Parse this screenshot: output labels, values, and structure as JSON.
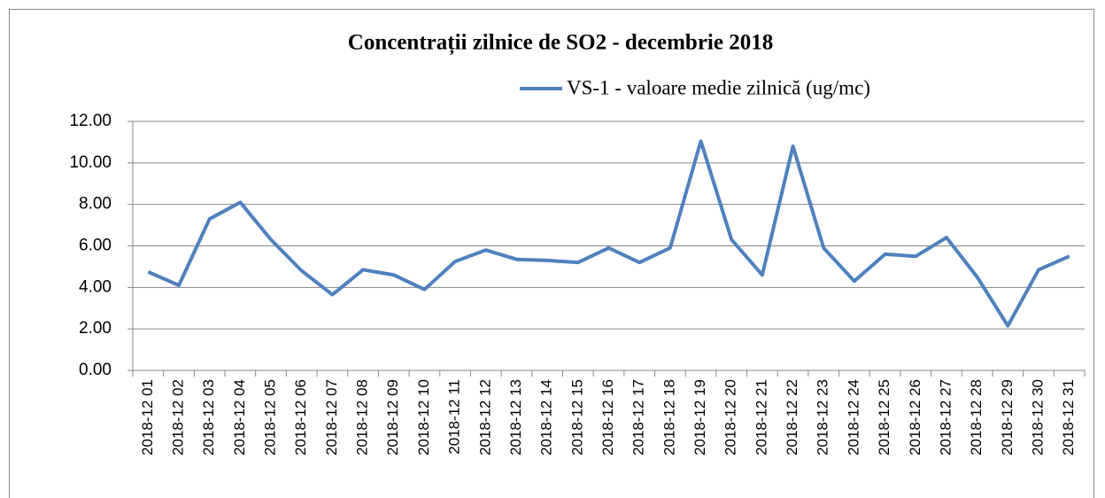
{
  "chart_data": {
    "type": "line",
    "title": "Concentrații zilnice de SO2 - decembrie 2018",
    "categories": [
      "2018-12 01",
      "2018-12 02",
      "2018-12 03",
      "2018-12 04",
      "2018-12 05",
      "2018-12 06",
      "2018-12 07",
      "2018-12 08",
      "2018-12 09",
      "2018-12 10",
      "2018-12 11",
      "2018-12 12",
      "2018-12 13",
      "2018-12 14",
      "2018-12 15",
      "2018-12 16",
      "2018-12 17",
      "2018-12 18",
      "2018-12 19",
      "2018-12 20",
      "2018-12 21",
      "2018-12 22",
      "2018-12 23",
      "2018-12 24",
      "2018-12 25",
      "2018-12 26",
      "2018-12 27",
      "2018-12 28",
      "2018-12 29",
      "2018-12 30",
      "2018-12 31"
    ],
    "series": [
      {
        "name": "VS-1 - valoare medie zilnică (ug/mc)",
        "color": "#4f81bd",
        "values": [
          4.75,
          4.1,
          7.3,
          8.1,
          6.3,
          4.8,
          3.65,
          4.85,
          4.6,
          3.9,
          5.25,
          5.8,
          5.35,
          5.3,
          5.2,
          5.9,
          5.2,
          5.9,
          11.05,
          6.3,
          4.6,
          10.8,
          5.9,
          4.3,
          5.6,
          5.5,
          6.4,
          4.5,
          2.15,
          4.85,
          5.5
        ]
      }
    ],
    "ylim": [
      0,
      12
    ],
    "yticks": [
      {
        "value": 0,
        "label": "0.00"
      },
      {
        "value": 2,
        "label": "2.00"
      },
      {
        "value": 4,
        "label": "4.00"
      },
      {
        "value": 6,
        "label": "6.00"
      },
      {
        "value": 8,
        "label": "8.00"
      },
      {
        "value": 10,
        "label": "10.00"
      },
      {
        "value": 12,
        "label": "12.00"
      }
    ],
    "grid": true,
    "legend": "top"
  }
}
